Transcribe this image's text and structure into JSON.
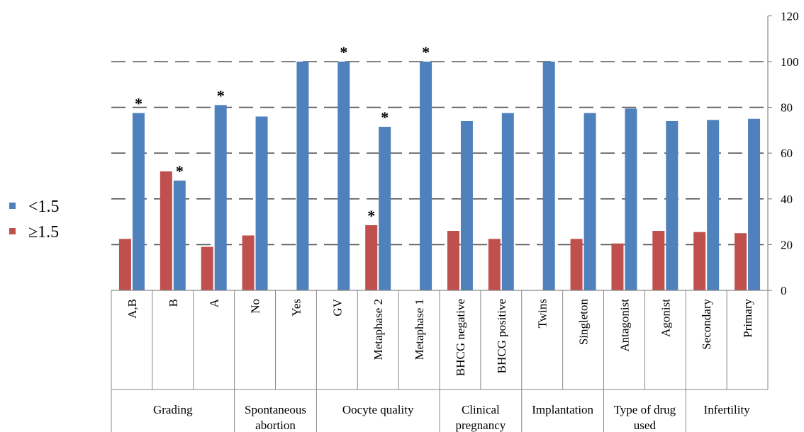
{
  "chart_data": {
    "type": "bar",
    "title": "",
    "xlabel": "",
    "ylabel": "",
    "ylim": [
      0,
      120
    ],
    "yticks": [
      0,
      20,
      40,
      60,
      80,
      100,
      120
    ],
    "grid": true,
    "y_axis_side": "right",
    "legend_position": "left",
    "categories": [
      "A,B",
      "B",
      "A",
      "No",
      "Yes",
      "GV",
      "Metaphase 2",
      "Metaphase 1",
      "BHCG negative",
      "BHCG positive",
      "Twins",
      "Singleton",
      "Antagonist",
      "Agonist",
      "Secondary",
      "Primary"
    ],
    "groups": [
      {
        "label_lines": [
          "Grading"
        ],
        "span": 3
      },
      {
        "label_lines": [
          "Spontaneous",
          "abortion"
        ],
        "span": 2
      },
      {
        "label_lines": [
          "Oocyte quality"
        ],
        "span": 3
      },
      {
        "label_lines": [
          "Clinical",
          "pregnancy"
        ],
        "span": 2
      },
      {
        "label_lines": [
          "Implantation"
        ],
        "span": 2
      },
      {
        "label_lines": [
          "Type of drug",
          "used"
        ],
        "span": 2
      },
      {
        "label_lines": [
          "Infertility"
        ],
        "span": 2
      }
    ],
    "series": [
      {
        "name": "<1.5",
        "color": "#4F81BD",
        "values": [
          77.5,
          48,
          81,
          76,
          100,
          100,
          71.5,
          100,
          74,
          77.5,
          100,
          77.5,
          79.5,
          74,
          74.5,
          75
        ],
        "star": [
          true,
          true,
          true,
          false,
          false,
          true,
          true,
          true,
          false,
          false,
          false,
          false,
          false,
          false,
          false,
          false
        ]
      },
      {
        "name": "≥1.5",
        "color": "#C0504D",
        "values": [
          22.5,
          52,
          19,
          24,
          0,
          0,
          28.5,
          0,
          26,
          22.5,
          0,
          22.5,
          20.5,
          26,
          25.5,
          25
        ],
        "star": [
          false,
          false,
          false,
          false,
          false,
          false,
          true,
          false,
          false,
          false,
          false,
          false,
          false,
          false,
          false,
          false
        ]
      }
    ],
    "annotation_symbol": "*"
  }
}
